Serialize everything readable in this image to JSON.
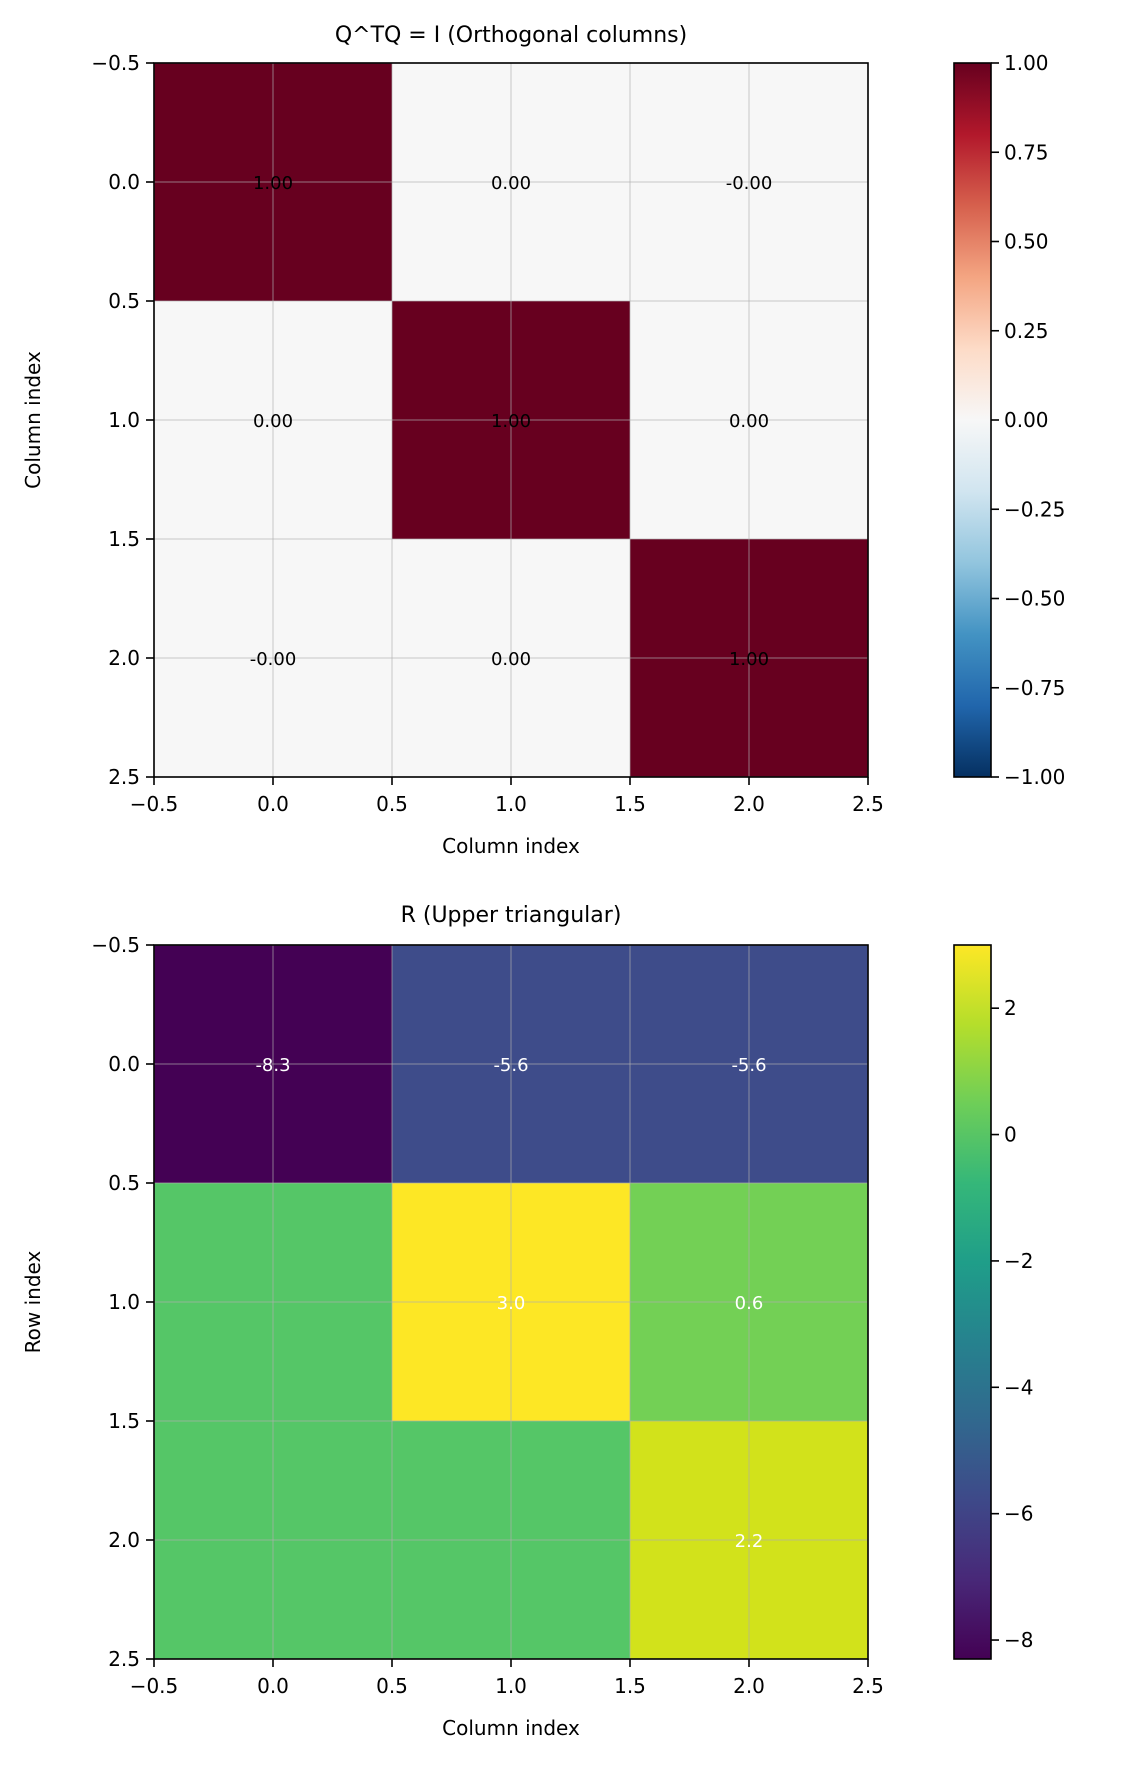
{
  "chart_data": [
    {
      "type": "heatmap",
      "title": "Q^TQ = I (Orthogonal columns)",
      "xlabel": "Column index",
      "ylabel": "Column index",
      "xlim": [
        -0.5,
        2.5
      ],
      "ylim": [
        2.5,
        -0.5
      ],
      "xticks": [
        "−0.5",
        "0.0",
        "0.5",
        "1.0",
        "1.5",
        "2.0",
        "2.5"
      ],
      "yticks": [
        "−0.5",
        "0.0",
        "0.5",
        "1.0",
        "1.5",
        "2.0",
        "2.5"
      ],
      "grid": true,
      "colormap": "RdBu_r",
      "clim": [
        -1.0,
        1.0
      ],
      "colorbar_ticks": [
        "−1.00",
        "−0.75",
        "−0.50",
        "−0.25",
        "0.00",
        "0.25",
        "0.50",
        "0.75",
        "1.00"
      ],
      "colorbar_tick_values": [
        -1.0,
        -0.75,
        -0.5,
        -0.25,
        0.0,
        0.25,
        0.5,
        0.75,
        1.0
      ],
      "values": [
        [
          1.0,
          0.0,
          -0.0
        ],
        [
          0.0,
          1.0,
          0.0
        ],
        [
          -0.0,
          0.0,
          1.0
        ]
      ],
      "annotations": [
        [
          "1.00",
          "0.00",
          "-0.00"
        ],
        [
          "0.00",
          "1.00",
          "0.00"
        ],
        [
          "-0.00",
          "0.00",
          "1.00"
        ]
      ],
      "annotation_color": "#000000",
      "cell_colors": [
        [
          "#67001f",
          "#f7f7f7",
          "#f7f7f7"
        ],
        [
          "#f7f7f7",
          "#67001f",
          "#f7f7f7"
        ],
        [
          "#f7f7f7",
          "#f7f7f7",
          "#67001f"
        ]
      ],
      "colorbar_gradient": [
        "#053061",
        "#2166ac",
        "#4393c3",
        "#92c5de",
        "#d1e5f0",
        "#f7f7f7",
        "#fddbc7",
        "#f4a582",
        "#d6604d",
        "#b2182b",
        "#67001f"
      ]
    },
    {
      "type": "heatmap",
      "title": "R (Upper triangular)",
      "xlabel": "Column index",
      "ylabel": "Row index",
      "xlim": [
        -0.5,
        2.5
      ],
      "ylim": [
        2.5,
        -0.5
      ],
      "xticks": [
        "−0.5",
        "0.0",
        "0.5",
        "1.0",
        "1.5",
        "2.0",
        "2.5"
      ],
      "yticks": [
        "−0.5",
        "0.0",
        "0.5",
        "1.0",
        "1.5",
        "2.0",
        "2.5"
      ],
      "grid": true,
      "colormap": "viridis",
      "clim": [
        -8.3,
        3.0
      ],
      "colorbar_ticks": [
        "−8",
        "−6",
        "−4",
        "−2",
        "0",
        "2"
      ],
      "colorbar_tick_values": [
        -8,
        -6,
        -4,
        -2,
        0,
        2
      ],
      "values": [
        [
          -8.3,
          -5.6,
          -5.6
        ],
        [
          0.0,
          3.0,
          0.6
        ],
        [
          0.0,
          0.0,
          2.2
        ]
      ],
      "annotations": [
        [
          "-8.3",
          "-5.6",
          "-5.6"
        ],
        [
          "",
          "3.0",
          "0.6"
        ],
        [
          "",
          "",
          "2.2"
        ]
      ],
      "annotation_color": "#ffffff",
      "cell_colors": [
        [
          "#440154",
          "#3e4c8a",
          "#3e4c8a"
        ],
        [
          "#55c667",
          "#fde725",
          "#73d055"
        ],
        [
          "#55c667",
          "#55c667",
          "#d2e21b"
        ]
      ],
      "colorbar_gradient": [
        "#440154",
        "#482878",
        "#3e4989",
        "#31688e",
        "#26828e",
        "#1f9e89",
        "#35b779",
        "#6ece58",
        "#b5de2b",
        "#fde725"
      ]
    }
  ]
}
